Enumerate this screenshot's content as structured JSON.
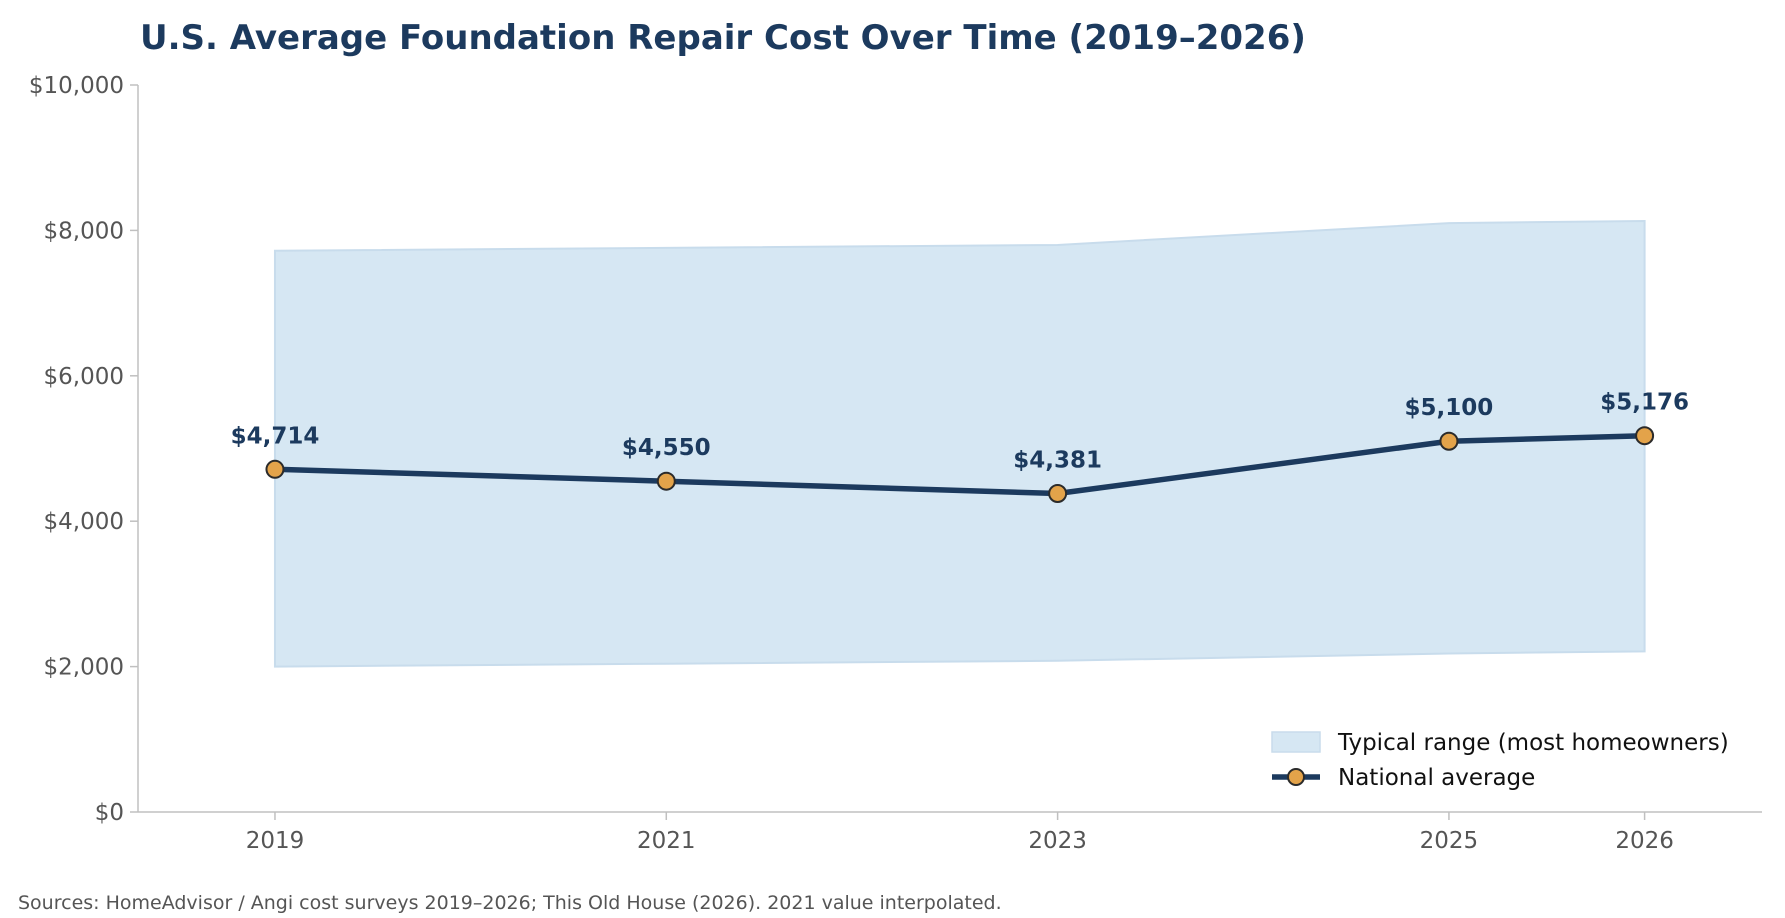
{
  "chart_data": {
    "type": "line",
    "title": "U.S. Average Foundation Repair Cost Over Time (2019–2026)",
    "xlabel": "",
    "ylabel": "",
    "x": [
      2019,
      2021,
      2023,
      2025,
      2026
    ],
    "x_tick_labels": [
      "2019",
      "2021",
      "2023",
      "2025",
      "2026"
    ],
    "ylim": [
      0,
      10000
    ],
    "y_ticks": [
      0,
      2000,
      4000,
      6000,
      8000,
      10000
    ],
    "y_tick_labels": [
      "$0",
      "$2,000",
      "$4,000",
      "$6,000",
      "$8,000",
      "$10,000"
    ],
    "series": [
      {
        "name": "National average",
        "values": [
          4714,
          4550,
          4381,
          5100,
          5176
        ],
        "labels": [
          "$4,714",
          "$4,550",
          "$4,381",
          "$5,100",
          "$5,176"
        ]
      }
    ],
    "range_band": {
      "name": "Typical range (most homeowners)",
      "low": [
        2000,
        2040,
        2080,
        2180,
        2210
      ],
      "high": [
        7720,
        7760,
        7800,
        8100,
        8130
      ]
    },
    "legend_position": "bottom-right",
    "grid": false,
    "colors": {
      "line": "#1c3a5e",
      "marker_fill": "#e3a34a",
      "band_fill": "#d6e7f3",
      "band_edge": "#c8dcec",
      "axis": "#c0c0c0",
      "title": "#1c3a5e"
    }
  },
  "footer": {
    "source": "Sources: HomeAdvisor / Angi cost surveys 2019–2026; This Old House (2026). 2021 value interpolated."
  }
}
